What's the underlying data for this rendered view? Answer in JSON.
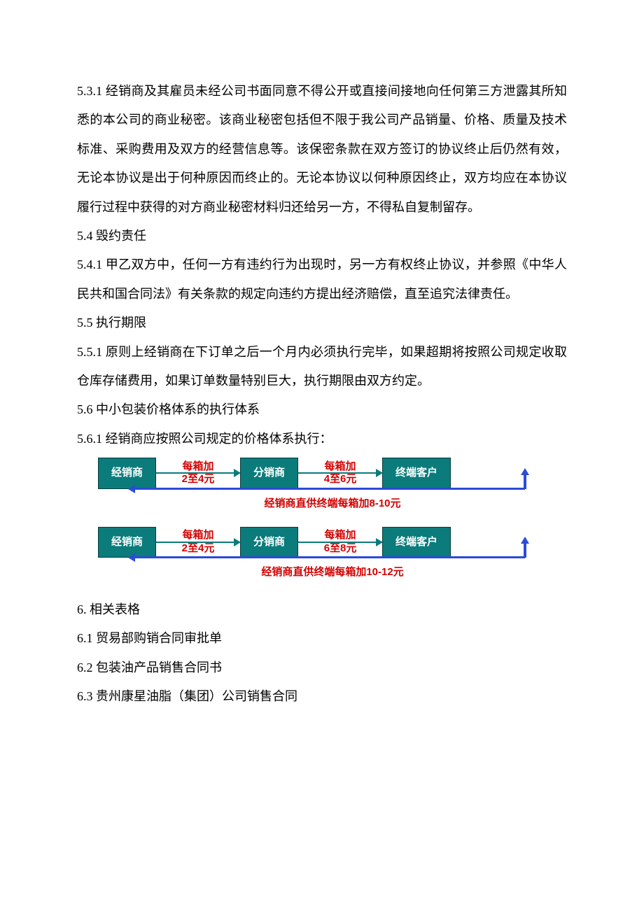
{
  "paragraphs": {
    "p531": "5.3.1 经销商及其雇员未经公司书面同意不得公开或直接间接地向任何第三方泄露其所知悉的本公司的商业秘密。该商业秘密包括但不限于我公司产品销量、价格、质量及技术标准、采购费用及双方的经营信息等。该保密条款在双方签订的协议终止后仍然有效，无论本协议是出于何种原因而终止的。无论本协议以何种原因终止，双方均应在本协议履行过程中获得的对方商业秘密材料归还给另一方，不得私自复制留存。",
    "p54": "5.4 毁约责任",
    "p541": "5.4.1 甲乙双方中，任何一方有违约行为出现时，另一方有权终止协议，并参照《中华人民共和国合同法》有关条款的规定向违约方提出经济赔偿，直至追究法律责任。",
    "p55": "5.5 执行期限",
    "p551": "5.5.1 原则上经销商在下订单之后一个月内必须执行完毕，如果超期将按照公司规定收取仓库存储费用，如果订单数量特别巨大，执行期限由双方约定。",
    "p56": "5.6 中小包装价格体系的执行体系",
    "p561": "5.6.1 经销商应按照公司规定的价格体系执行：",
    "p6": "6. 相关表格",
    "p61": "6.1 贸易部购销合同审批单",
    "p62": "6.2 包装油产品销售合同书",
    "p63": "6.3 贵州康星油脂（集团）公司销售合同"
  },
  "flowcharts": [
    {
      "nodes": [
        "经销商",
        "分销商",
        "终端客户"
      ],
      "arrows": [
        {
          "top": "每箱加",
          "bottom": "2至4元"
        },
        {
          "top": "每箱加",
          "bottom": "4至6元"
        }
      ],
      "direct_text": "经销商直供终端每箱加8-10元"
    },
    {
      "nodes": [
        "经销商",
        "分销商",
        "终端客户"
      ],
      "arrows": [
        {
          "top": "每箱加",
          "bottom": "2至4元"
        },
        {
          "top": "每箱加",
          "bottom": "6至8元"
        }
      ],
      "direct_text": "经销商直供终端每箱加10-12元"
    }
  ],
  "colors": {
    "node_bg": "#0b7b7b",
    "node_text": "#ffffff",
    "arrow_text": "#d30000",
    "arrow_line": "#0b7b7b",
    "direct_line": "#2b4bd8",
    "body_text": "#000000",
    "page_bg": "#ffffff"
  }
}
